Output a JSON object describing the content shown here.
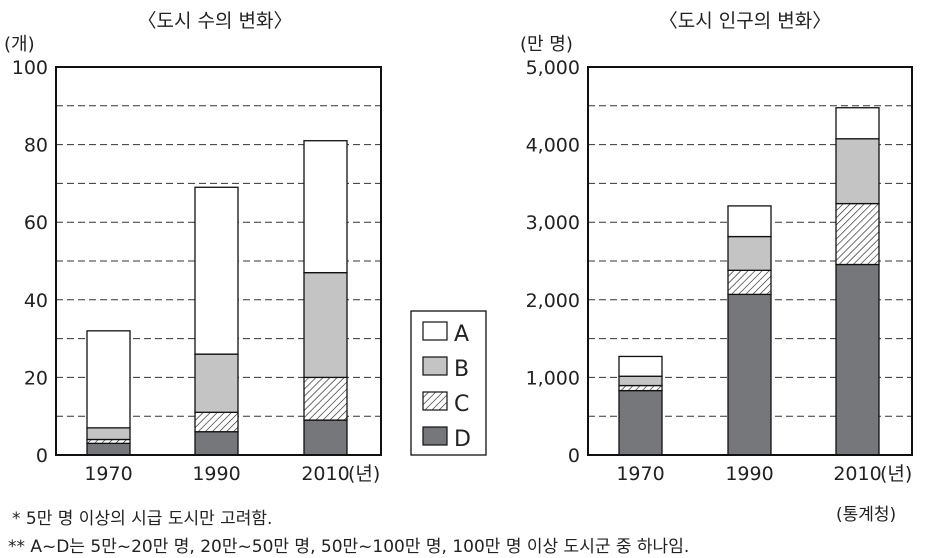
{
  "chart_data": [
    {
      "type": "bar",
      "stacked": true,
      "title": "〈도시 수의 변화〉",
      "ylabel": "(개)",
      "xlabel_unit": "(년)",
      "categories": [
        "1970",
        "1990",
        "2010"
      ],
      "ylim": [
        0,
        100
      ],
      "yticks": [
        "0",
        "20",
        "40",
        "60",
        "80",
        "100"
      ],
      "grid_step": 10,
      "series": [
        {
          "name": "D",
          "values": [
            3,
            6,
            9
          ]
        },
        {
          "name": "C",
          "values": [
            1,
            5,
            11
          ]
        },
        {
          "name": "B",
          "values": [
            3,
            15,
            27
          ]
        },
        {
          "name": "A",
          "values": [
            25,
            43,
            34
          ]
        }
      ]
    },
    {
      "type": "bar",
      "stacked": true,
      "title": "〈도시 인구의 변화〉",
      "ylabel": "(만 명)",
      "xlabel_unit": "(년)",
      "categories": [
        "1970",
        "1990",
        "2010"
      ],
      "ylim": [
        0,
        5000
      ],
      "yticks": [
        "0",
        "1,000",
        "2,000",
        "3,000",
        "4,000",
        "5,000"
      ],
      "grid_step": 500,
      "series": [
        {
          "name": "D",
          "values": [
            830,
            2070,
            2455
          ]
        },
        {
          "name": "C",
          "values": [
            65,
            310,
            785
          ]
        },
        {
          "name": "B",
          "values": [
            120,
            435,
            835
          ]
        },
        {
          "name": "A",
          "values": [
            255,
            395,
            400
          ]
        }
      ]
    }
  ],
  "legend": {
    "items": [
      "A",
      "B",
      "C",
      "D"
    ],
    "position": "center-between-charts"
  },
  "colors": {
    "A": "#ffffff",
    "B": "#c4c4c4",
    "C": "hatch",
    "D": "#76777b"
  },
  "notes": {
    "note1": "* 5만 명 이상의 시급 도시만 고려함.",
    "note2": "** A~D는 5만~20만 명, 20만~50만 명, 50만~100만 명, 100만 명 이상 도시군 중 하나임.",
    "source": "(통계청)"
  }
}
